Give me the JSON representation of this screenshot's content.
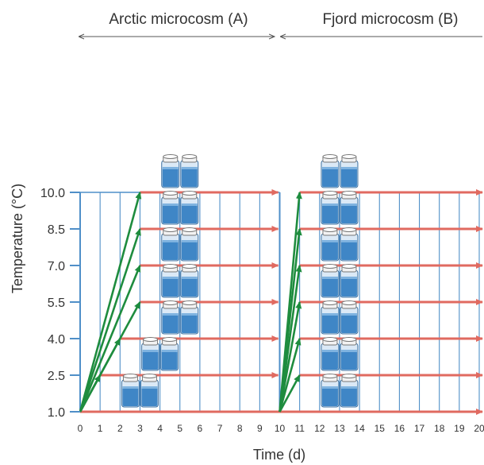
{
  "header": {
    "arctic_label": "Arctic microcosm (A)",
    "fjord_label": "Fjord microcosm (B)"
  },
  "axes": {
    "ylabel": "Temperature (°C)",
    "xlabel": "Time (d)",
    "y_ticks": [
      "10.0",
      "8.5",
      "7.0",
      "5.5",
      "4.0",
      "2.5",
      "1.0"
    ],
    "x_ticks": [
      "0",
      "1",
      "2",
      "3",
      "4",
      "5",
      "6",
      "7",
      "8",
      "9",
      "10",
      "11",
      "12",
      "13",
      "14",
      "15",
      "16",
      "17",
      "18",
      "19",
      "20"
    ]
  },
  "colors": {
    "grid_blue": "#4f8fc8",
    "hold_arrow": "#e06a60",
    "ramp_arrow": "#1e8c3e",
    "vial_fill": "#3f86c6",
    "label_text": "#333333"
  },
  "icons": {
    "vial": "vial-pair-icon"
  },
  "chart_data": {
    "type": "diagram",
    "y_values": [
      1.0,
      2.5,
      4.0,
      5.5,
      7.0,
      8.5,
      10.0
    ],
    "x_range": [
      0,
      20
    ],
    "arctic": {
      "ramp_start": {
        "x": 0,
        "y": 1.0
      },
      "ramp_targets": [
        {
          "x": 1,
          "y": 2.5
        },
        {
          "x": 2,
          "y": 4.0
        },
        {
          "x": 3,
          "y": 5.5
        },
        {
          "x": 3,
          "y": 7.0
        },
        {
          "x": 3,
          "y": 8.5
        },
        {
          "x": 3,
          "y": 10.0
        }
      ],
      "holds": [
        {
          "y": 1.0,
          "x_from": 0,
          "x_to": 20
        },
        {
          "y": 2.5,
          "x_from": 1,
          "x_to": 10
        },
        {
          "y": 4.0,
          "x_from": 2,
          "x_to": 10
        },
        {
          "y": 5.5,
          "x_from": 3,
          "x_to": 10
        },
        {
          "y": 7.0,
          "x_from": 3,
          "x_to": 10
        },
        {
          "y": 8.5,
          "x_from": 3,
          "x_to": 10
        },
        {
          "y": 10.0,
          "x_from": 3,
          "x_to": 10
        }
      ],
      "vials": [
        {
          "x": 3.0,
          "y": 1.0
        },
        {
          "x": 4.0,
          "y": 2.5
        },
        {
          "x": 5.0,
          "y": 4.0
        },
        {
          "x": 5.0,
          "y": 5.5
        },
        {
          "x": 5.0,
          "y": 7.0
        },
        {
          "x": 5.0,
          "y": 8.5
        },
        {
          "x": 5.0,
          "y": 10.0
        }
      ]
    },
    "fjord": {
      "ramp_start": {
        "x": 10,
        "y": 1.0
      },
      "ramp_targets": [
        {
          "x": 11,
          "y": 2.5
        },
        {
          "x": 11,
          "y": 4.0
        },
        {
          "x": 11,
          "y": 5.5
        },
        {
          "x": 11,
          "y": 7.0
        },
        {
          "x": 11,
          "y": 8.5
        },
        {
          "x": 11,
          "y": 10.0
        }
      ],
      "holds": [
        {
          "y": 2.5,
          "x_from": 11,
          "x_to": 20
        },
        {
          "y": 4.0,
          "x_from": 11,
          "x_to": 20
        },
        {
          "y": 5.5,
          "x_from": 11,
          "x_to": 20
        },
        {
          "y": 7.0,
          "x_from": 11,
          "x_to": 20
        },
        {
          "y": 8.5,
          "x_from": 11,
          "x_to": 20
        },
        {
          "y": 10.0,
          "x_from": 11,
          "x_to": 20
        }
      ],
      "vials": [
        {
          "x": 13.0,
          "y": 1.0
        },
        {
          "x": 13.0,
          "y": 2.5
        },
        {
          "x": 13.0,
          "y": 4.0
        },
        {
          "x": 13.0,
          "y": 5.5
        },
        {
          "x": 13.0,
          "y": 7.0
        },
        {
          "x": 13.0,
          "y": 8.5
        },
        {
          "x": 13.0,
          "y": 10.0
        }
      ]
    }
  }
}
